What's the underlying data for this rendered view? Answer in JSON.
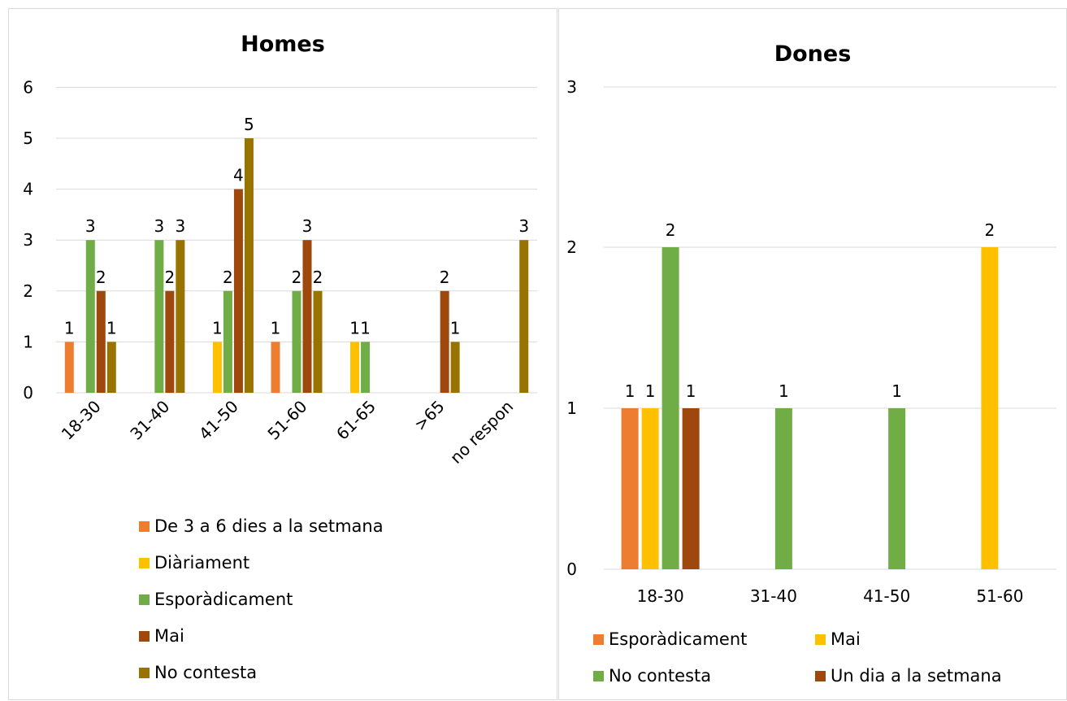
{
  "chart_data": [
    {
      "type": "bar",
      "title": "Homes",
      "categories": [
        "18-30",
        "31-40",
        "41-50",
        "51-60",
        "61-65",
        ">65",
        "no respon"
      ],
      "ylim": [
        0,
        6
      ],
      "yticks": [
        "0",
        "1",
        "2",
        "3",
        "4",
        "5",
        "6"
      ],
      "grid": true,
      "legend_position": "bottom",
      "series": [
        {
          "name": "De 3 a 6 dies a la setmana",
          "color": "#ED7D31",
          "values": [
            1,
            null,
            null,
            1,
            null,
            null,
            null
          ]
        },
        {
          "name": "Diàriament",
          "color": "#FFC000",
          "values": [
            null,
            null,
            1,
            null,
            1,
            null,
            null
          ]
        },
        {
          "name": "Esporàdicament",
          "color": "#70AD47",
          "values": [
            3,
            3,
            2,
            2,
            1,
            null,
            null
          ]
        },
        {
          "name": "Mai",
          "color": "#9E480E",
          "values": [
            2,
            2,
            4,
            3,
            null,
            2,
            null
          ]
        },
        {
          "name": "No contesta",
          "color": "#997300",
          "values": [
            1,
            3,
            5,
            2,
            null,
            1,
            3
          ]
        }
      ]
    },
    {
      "type": "bar",
      "title": "Dones",
      "categories": [
        "18-30",
        "31-40",
        "41-50",
        "51-60"
      ],
      "ylim": [
        0,
        3
      ],
      "yticks": [
        "0",
        "1",
        "2",
        "3"
      ],
      "yscale": "log",
      "grid": true,
      "legend_position": "bottom",
      "series": [
        {
          "name": "Esporàdicament",
          "color": "#ED7D31",
          "values": [
            1,
            null,
            null,
            null
          ]
        },
        {
          "name": "Mai",
          "color": "#FFC000",
          "values": [
            1,
            null,
            null,
            2
          ]
        },
        {
          "name": "No contesta",
          "color": "#70AD47",
          "values": [
            2,
            1,
            1,
            null
          ]
        },
        {
          "name": "Un dia a la setmana",
          "color": "#9E480E",
          "values": [
            1,
            null,
            null,
            null
          ]
        }
      ]
    }
  ]
}
